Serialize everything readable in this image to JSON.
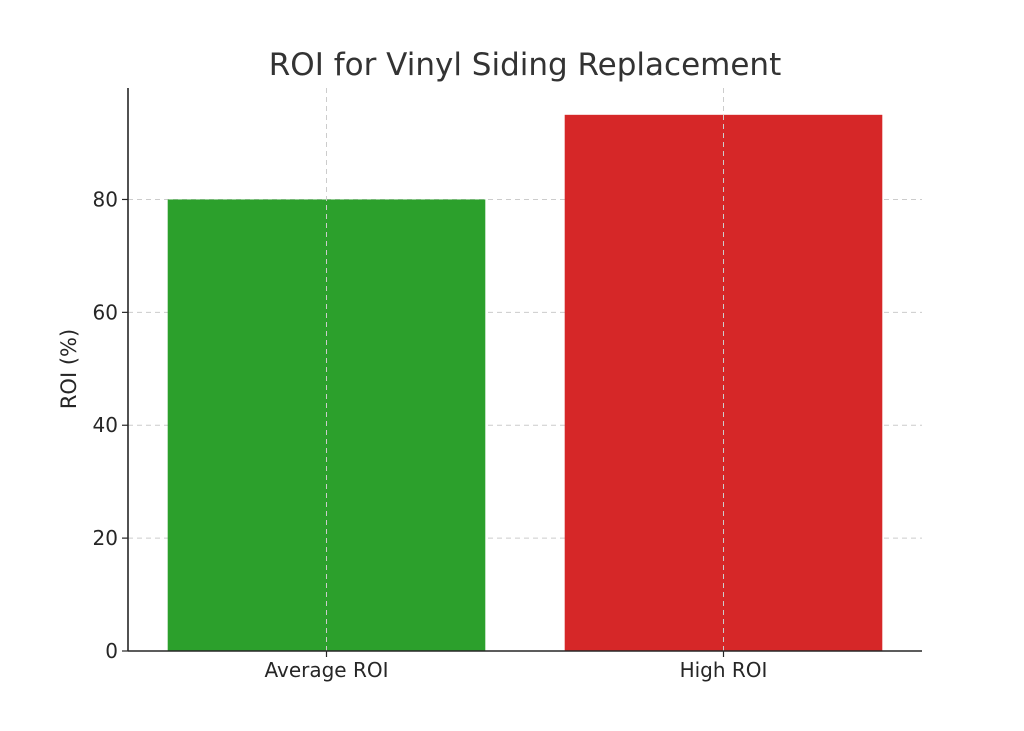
{
  "chart_data": {
    "type": "bar",
    "title": "ROI for Vinyl Siding Replacement",
    "xlabel": "",
    "ylabel": "ROI (%)",
    "categories": [
      "Average ROI",
      "High ROI"
    ],
    "values": [
      80,
      95
    ],
    "colors": [
      "#2ca02c",
      "#d62728"
    ],
    "ylim": [
      0,
      99.75
    ],
    "yticks": [
      0,
      20,
      40,
      60,
      80
    ],
    "grid": true,
    "legend": "none"
  }
}
